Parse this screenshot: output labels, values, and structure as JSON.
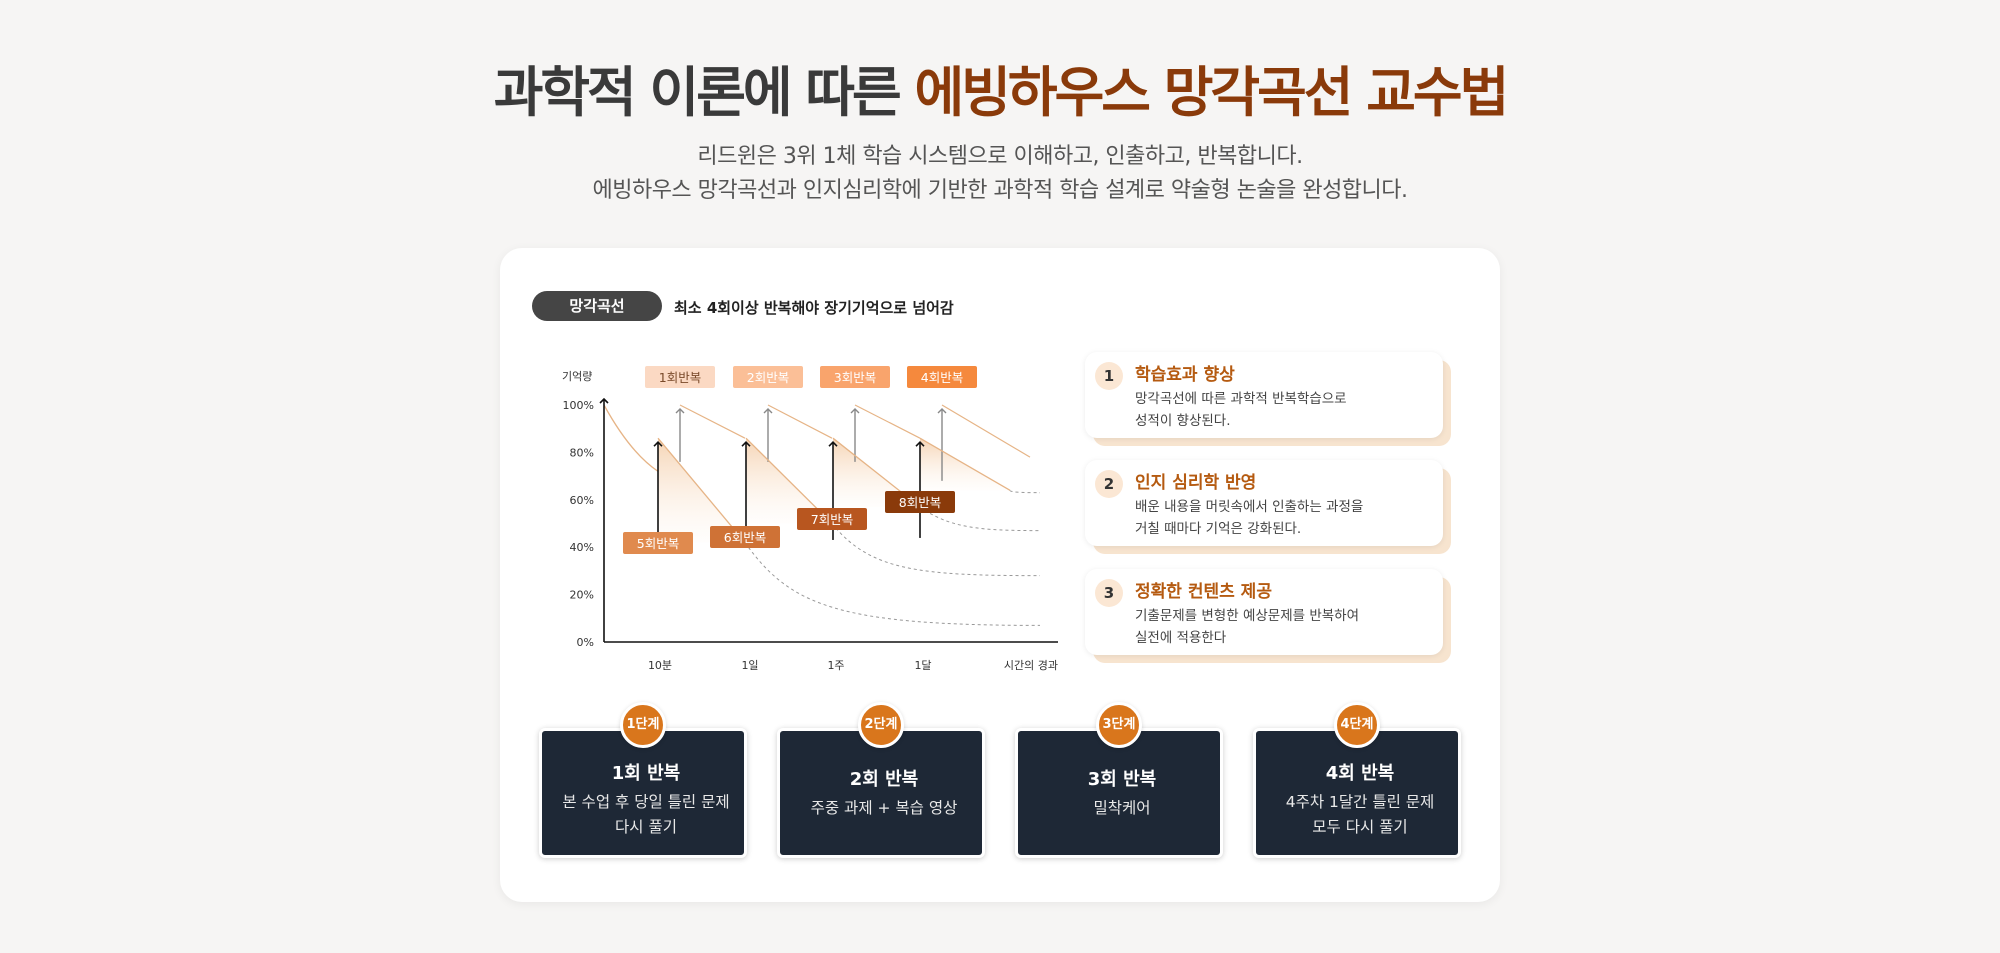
{
  "header": {
    "title_prefix": "과학적 이론에 따른 ",
    "title_accent": "에빙하우스 망각곡선 교수법",
    "subtitle_line1": "리드윈은 3위 1체 학습 시스템으로 이해하고, 인출하고, 반복합니다.",
    "subtitle_line2": "에빙하우스 망각곡선과 인지심리학에 기반한 과학적 학습 설계로 약술형 논술을 완성합니다."
  },
  "section": {
    "pill_label": "망각곡선",
    "description": "최소 4회이상 반복해야 장기기억으로 넘어감"
  },
  "chart_data": {
    "type": "line",
    "ylabel": "기억량",
    "xlabel": "시간의 경과",
    "y_ticks": [
      "100%",
      "80%",
      "60%",
      "40%",
      "20%",
      "0%"
    ],
    "x_ticks": [
      "10분",
      "1일",
      "1주",
      "1달"
    ],
    "ylim": [
      0,
      100
    ],
    "upper_labels": [
      "1회반복",
      "2회반복",
      "3회반복",
      "4회반복"
    ],
    "lower_labels": [
      "5회반복",
      "6회반복",
      "7회반복",
      "8회반복"
    ],
    "upper_colors": [
      "#fbd9c3",
      "#fbbf97",
      "#f9a46c",
      "#f5893d"
    ],
    "lower_colors": [
      "#e08a4e",
      "#cf7236",
      "#b8561f",
      "#8a3a0a"
    ],
    "curve_color": "#e6b486"
  },
  "info_cards": [
    {
      "num": "1",
      "title": "학습효과 향상",
      "text": "망각곡선에 따른 과학적 반복학습으로\n성적이 향상된다."
    },
    {
      "num": "2",
      "title": "인지 심리학 반영",
      "text": "배운 내용을 머릿속에서 인출하는 과정을\n거칠 때마다 기억은 강화된다."
    },
    {
      "num": "3",
      "title": "정확한 컨텐츠 제공",
      "text": "기출문제를 변형한 예상문제를 반복하여\n실전에 적용한다"
    }
  ],
  "steps": [
    {
      "badge": "1단계",
      "title": "1회 반복",
      "desc": "본 수업 후 당일 틀린 문제\n다시 풀기"
    },
    {
      "badge": "2단계",
      "title": "2회 반복",
      "desc": "주중 과제 + 복습 영상"
    },
    {
      "badge": "3단계",
      "title": "3회 반복",
      "desc": "밀착케어"
    },
    {
      "badge": "4단계",
      "title": "4회 반복",
      "desc": "4주차 1달간 틀린 문제\n모두 다시 풀기"
    }
  ],
  "colors": {
    "accent_brown": "#8a3a0a",
    "title_orange": "#b55a10",
    "badge_orange": "#d9761c",
    "step_bg": "#1e2836"
  }
}
